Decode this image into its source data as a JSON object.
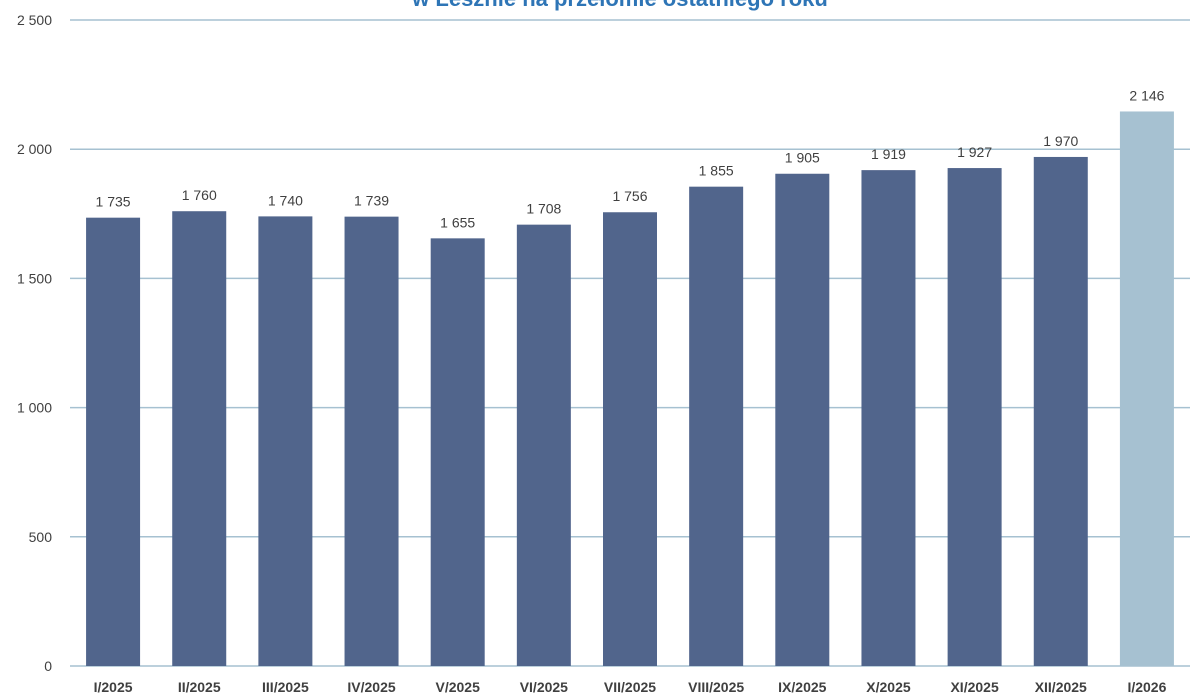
{
  "chart_data": {
    "type": "bar",
    "title": "w Lesznie na przełomie ostatniego roku",
    "categories": [
      "I/2025",
      "II/2025",
      "III/2025",
      "IV/2025",
      "V/2025",
      "VI/2025",
      "VII/2025",
      "VIII/2025",
      "IX/2025",
      "X/2025",
      "XI/2025",
      "XII/2025",
      "I/2026"
    ],
    "values": [
      1735,
      1760,
      1740,
      1739,
      1655,
      1708,
      1756,
      1855,
      1905,
      1919,
      1927,
      1970,
      2146
    ],
    "value_labels": [
      "1 735",
      "1 760",
      "1 740",
      "1 739",
      "1 655",
      "1 708",
      "1 756",
      "1 855",
      "1 905",
      "1 919",
      "1 927",
      "1 970",
      "2 146"
    ],
    "ylim": [
      0,
      2500
    ],
    "y_ticks": [
      0,
      500,
      1000,
      1500,
      2000,
      2500
    ],
    "y_tick_labels": [
      "0",
      "500",
      "1 000",
      "1 500",
      "2 000",
      "2 500"
    ],
    "grid": true,
    "legend": "none",
    "xlabel": "",
    "ylabel": "",
    "colors": {
      "bar": "#51658C",
      "highlight_bar": "#A6C1D1",
      "grid": "#A6C1D1",
      "title": "#2E75B6",
      "text": "#404040"
    },
    "highlight_index": 12
  }
}
